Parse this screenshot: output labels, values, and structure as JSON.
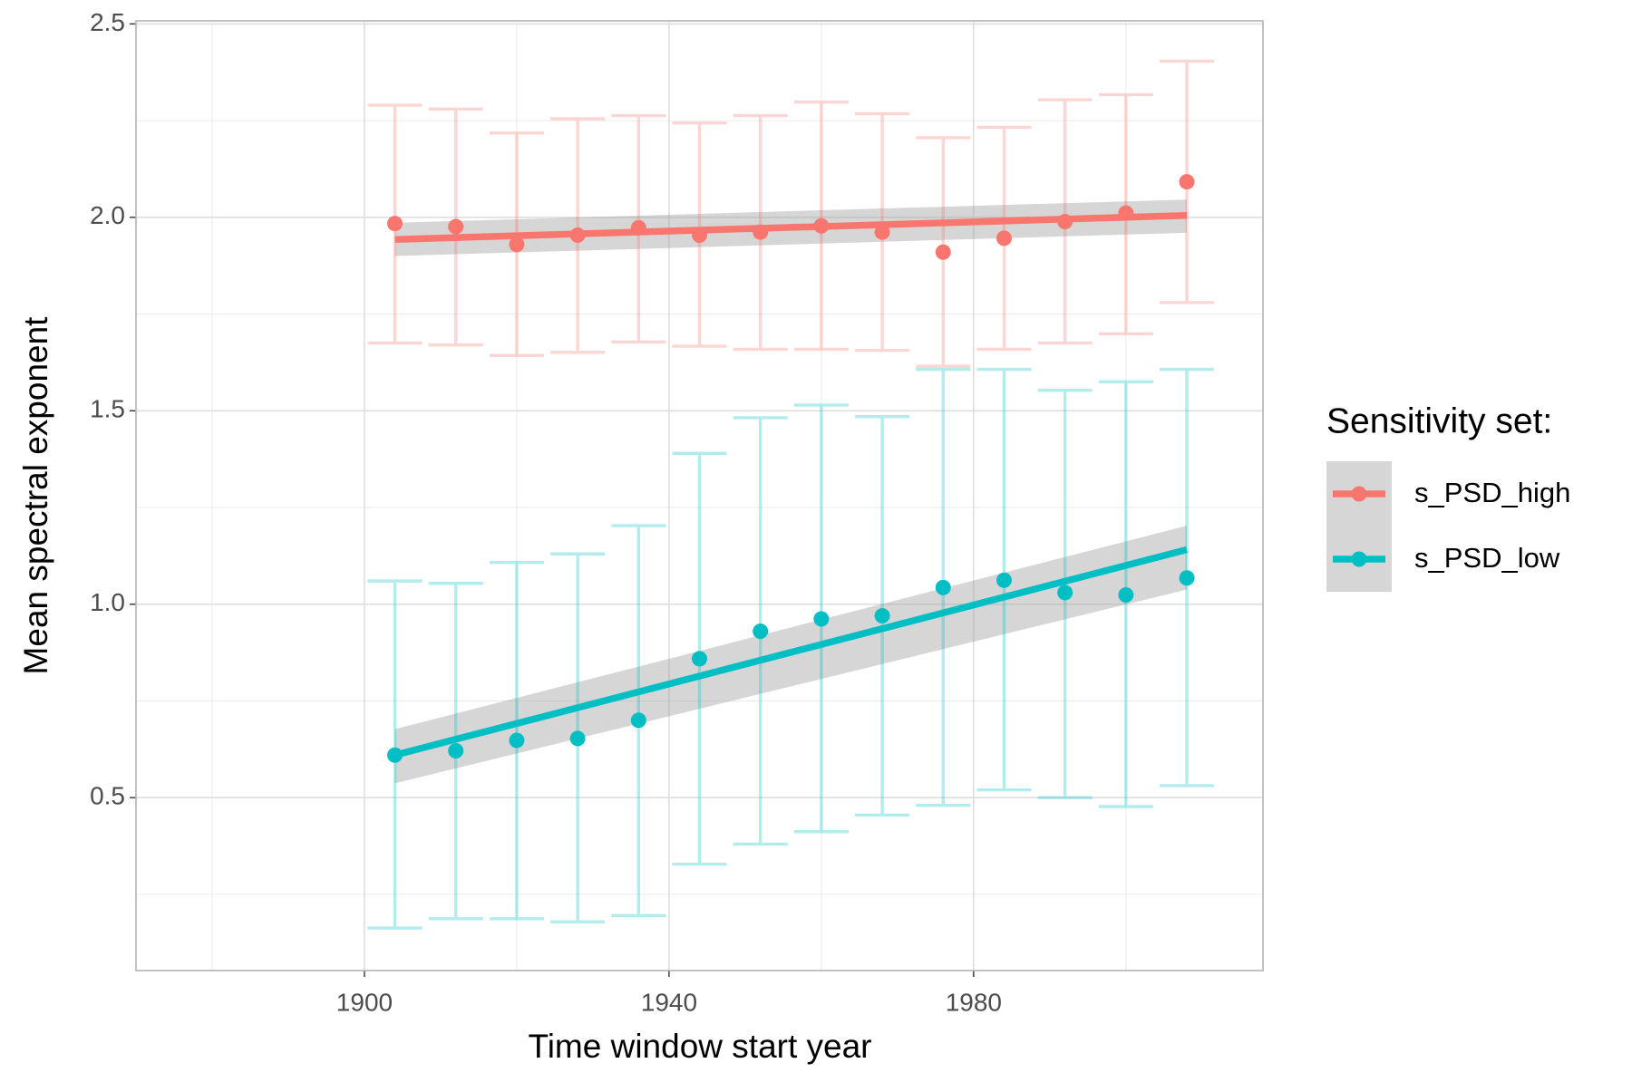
{
  "chart_data": {
    "type": "scatter",
    "x_label": "Time window start year",
    "y_label": "Mean spectral exponent",
    "legend_title": "Sensitivity set:",
    "legend": "right",
    "grid": true,
    "xlim": [
      1870,
      2018
    ],
    "ylim": [
      0.053,
      2.508
    ],
    "xticks": [
      1900,
      1940,
      1980
    ],
    "yticks": [
      {
        "value": 0.5,
        "label": "0.5"
      },
      {
        "value": 1.0,
        "label": "1.0"
      },
      {
        "value": 1.5,
        "label": "1.5"
      },
      {
        "value": 2.0,
        "label": "2.0"
      },
      {
        "value": 2.5,
        "label": "2.5"
      }
    ],
    "x_minor_grid": [
      1880,
      1920,
      1960,
      2000
    ],
    "y_minor_grid": [
      0.25,
      0.75,
      1.25,
      1.75,
      2.25
    ],
    "x": [
      1904,
      1912,
      1920,
      1928,
      1936,
      1944,
      1952,
      1960,
      1968,
      1976,
      1984,
      1992,
      2000,
      2008
    ],
    "series": [
      {
        "name": "s_PSD_high",
        "color": "#F8766D",
        "values": [
          1.984,
          1.976,
          1.93,
          1.954,
          1.973,
          1.954,
          1.962,
          1.978,
          1.962,
          1.91,
          1.946,
          1.989,
          2.011,
          2.092
        ],
        "lower": [
          1.675,
          1.67,
          1.643,
          1.651,
          1.678,
          1.667,
          1.659,
          1.659,
          1.656,
          1.615,
          1.659,
          1.675,
          1.699,
          1.78
        ],
        "upper": [
          2.29,
          2.28,
          2.218,
          2.255,
          2.263,
          2.244,
          2.263,
          2.298,
          2.268,
          2.206,
          2.233,
          2.304,
          2.317,
          2.404
        ],
        "fit": {
          "x": [
            1904,
            2008
          ],
          "values": [
            1.943,
            2.005
          ],
          "lower": [
            1.9,
            1.96
          ],
          "upper": [
            1.986,
            2.046
          ]
        }
      },
      {
        "name": "s_PSD_low",
        "color": "#00BFC4",
        "values": [
          0.61,
          0.621,
          0.648,
          0.653,
          0.7,
          0.859,
          0.93,
          0.962,
          0.97,
          1.043,
          1.062,
          1.03,
          1.024,
          1.068
        ],
        "lower": [
          0.163,
          0.187,
          0.187,
          0.179,
          0.195,
          0.328,
          0.38,
          0.412,
          0.455,
          0.48,
          0.52,
          0.5,
          0.477,
          0.531
        ],
        "upper": [
          1.06,
          1.054,
          1.108,
          1.13,
          1.203,
          1.39,
          1.482,
          1.515,
          1.485,
          1.607,
          1.607,
          1.553,
          1.575,
          1.607
        ],
        "fit": {
          "x": [
            1904,
            2008
          ],
          "values": [
            0.61,
            1.141
          ],
          "lower": [
            0.537,
            1.038
          ],
          "upper": [
            0.677,
            1.203
          ]
        }
      }
    ]
  }
}
